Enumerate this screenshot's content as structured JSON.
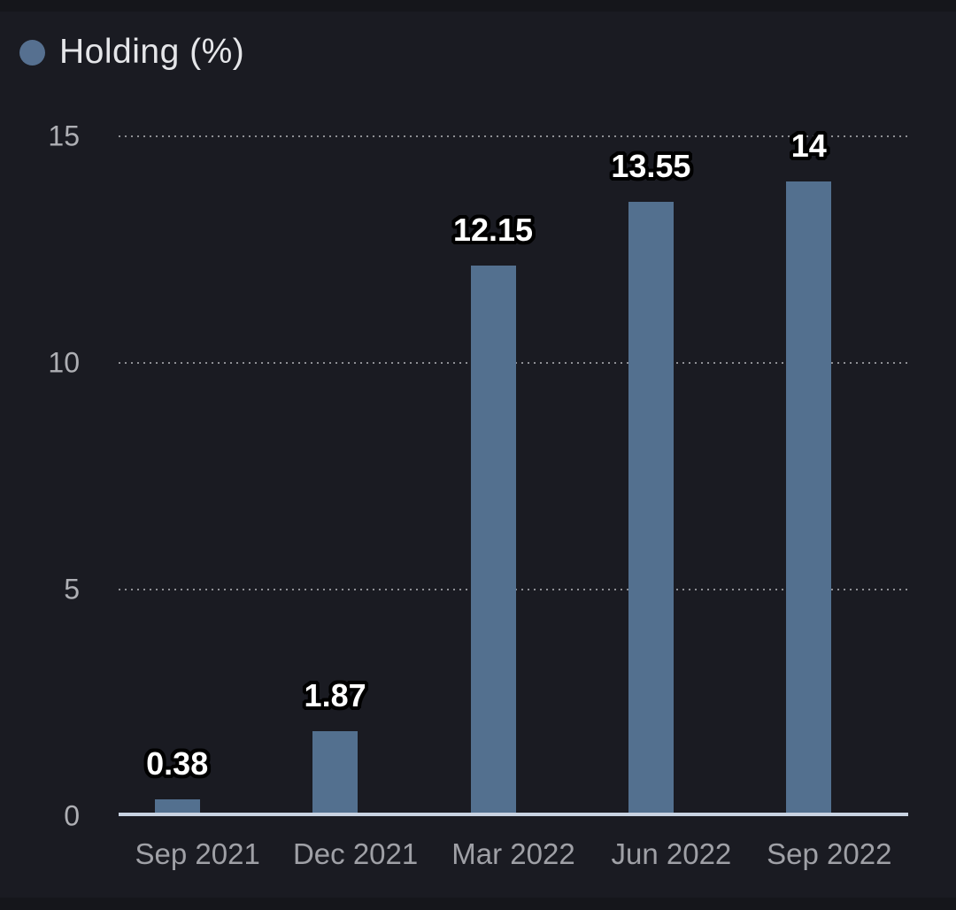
{
  "legend": {
    "label": "Holding (%)",
    "marker_color": "#567090"
  },
  "colors": {
    "background": "#1a1b22",
    "edge_strip": "#15161b",
    "bar": "#53708f",
    "axis_line": "#c9d3e2",
    "grid_dots": "#8e8f94",
    "y_tick_label": "#aeafb4",
    "x_tick_label": "#9fa0a6",
    "legend_text": "#e5e6e9",
    "value_label_fill": "#ffffff",
    "value_label_outline": "#000000"
  },
  "chart_data": {
    "type": "bar",
    "title": "",
    "series_name": "Holding (%)",
    "categories": [
      "Sep 2021",
      "Dec 2021",
      "Mar 2022",
      "Jun 2022",
      "Sep 2022"
    ],
    "values": [
      0.38,
      1.87,
      12.15,
      13.55,
      14
    ],
    "value_labels": [
      "0.38",
      "1.87",
      "12.15",
      "13.55",
      "14"
    ],
    "xlabel": "",
    "ylabel": "",
    "ylim": [
      0,
      15
    ],
    "yticks": [
      0,
      5,
      10,
      15
    ],
    "grid": "horizontal-dotted",
    "legend_position": "top-left",
    "background": "dark"
  }
}
